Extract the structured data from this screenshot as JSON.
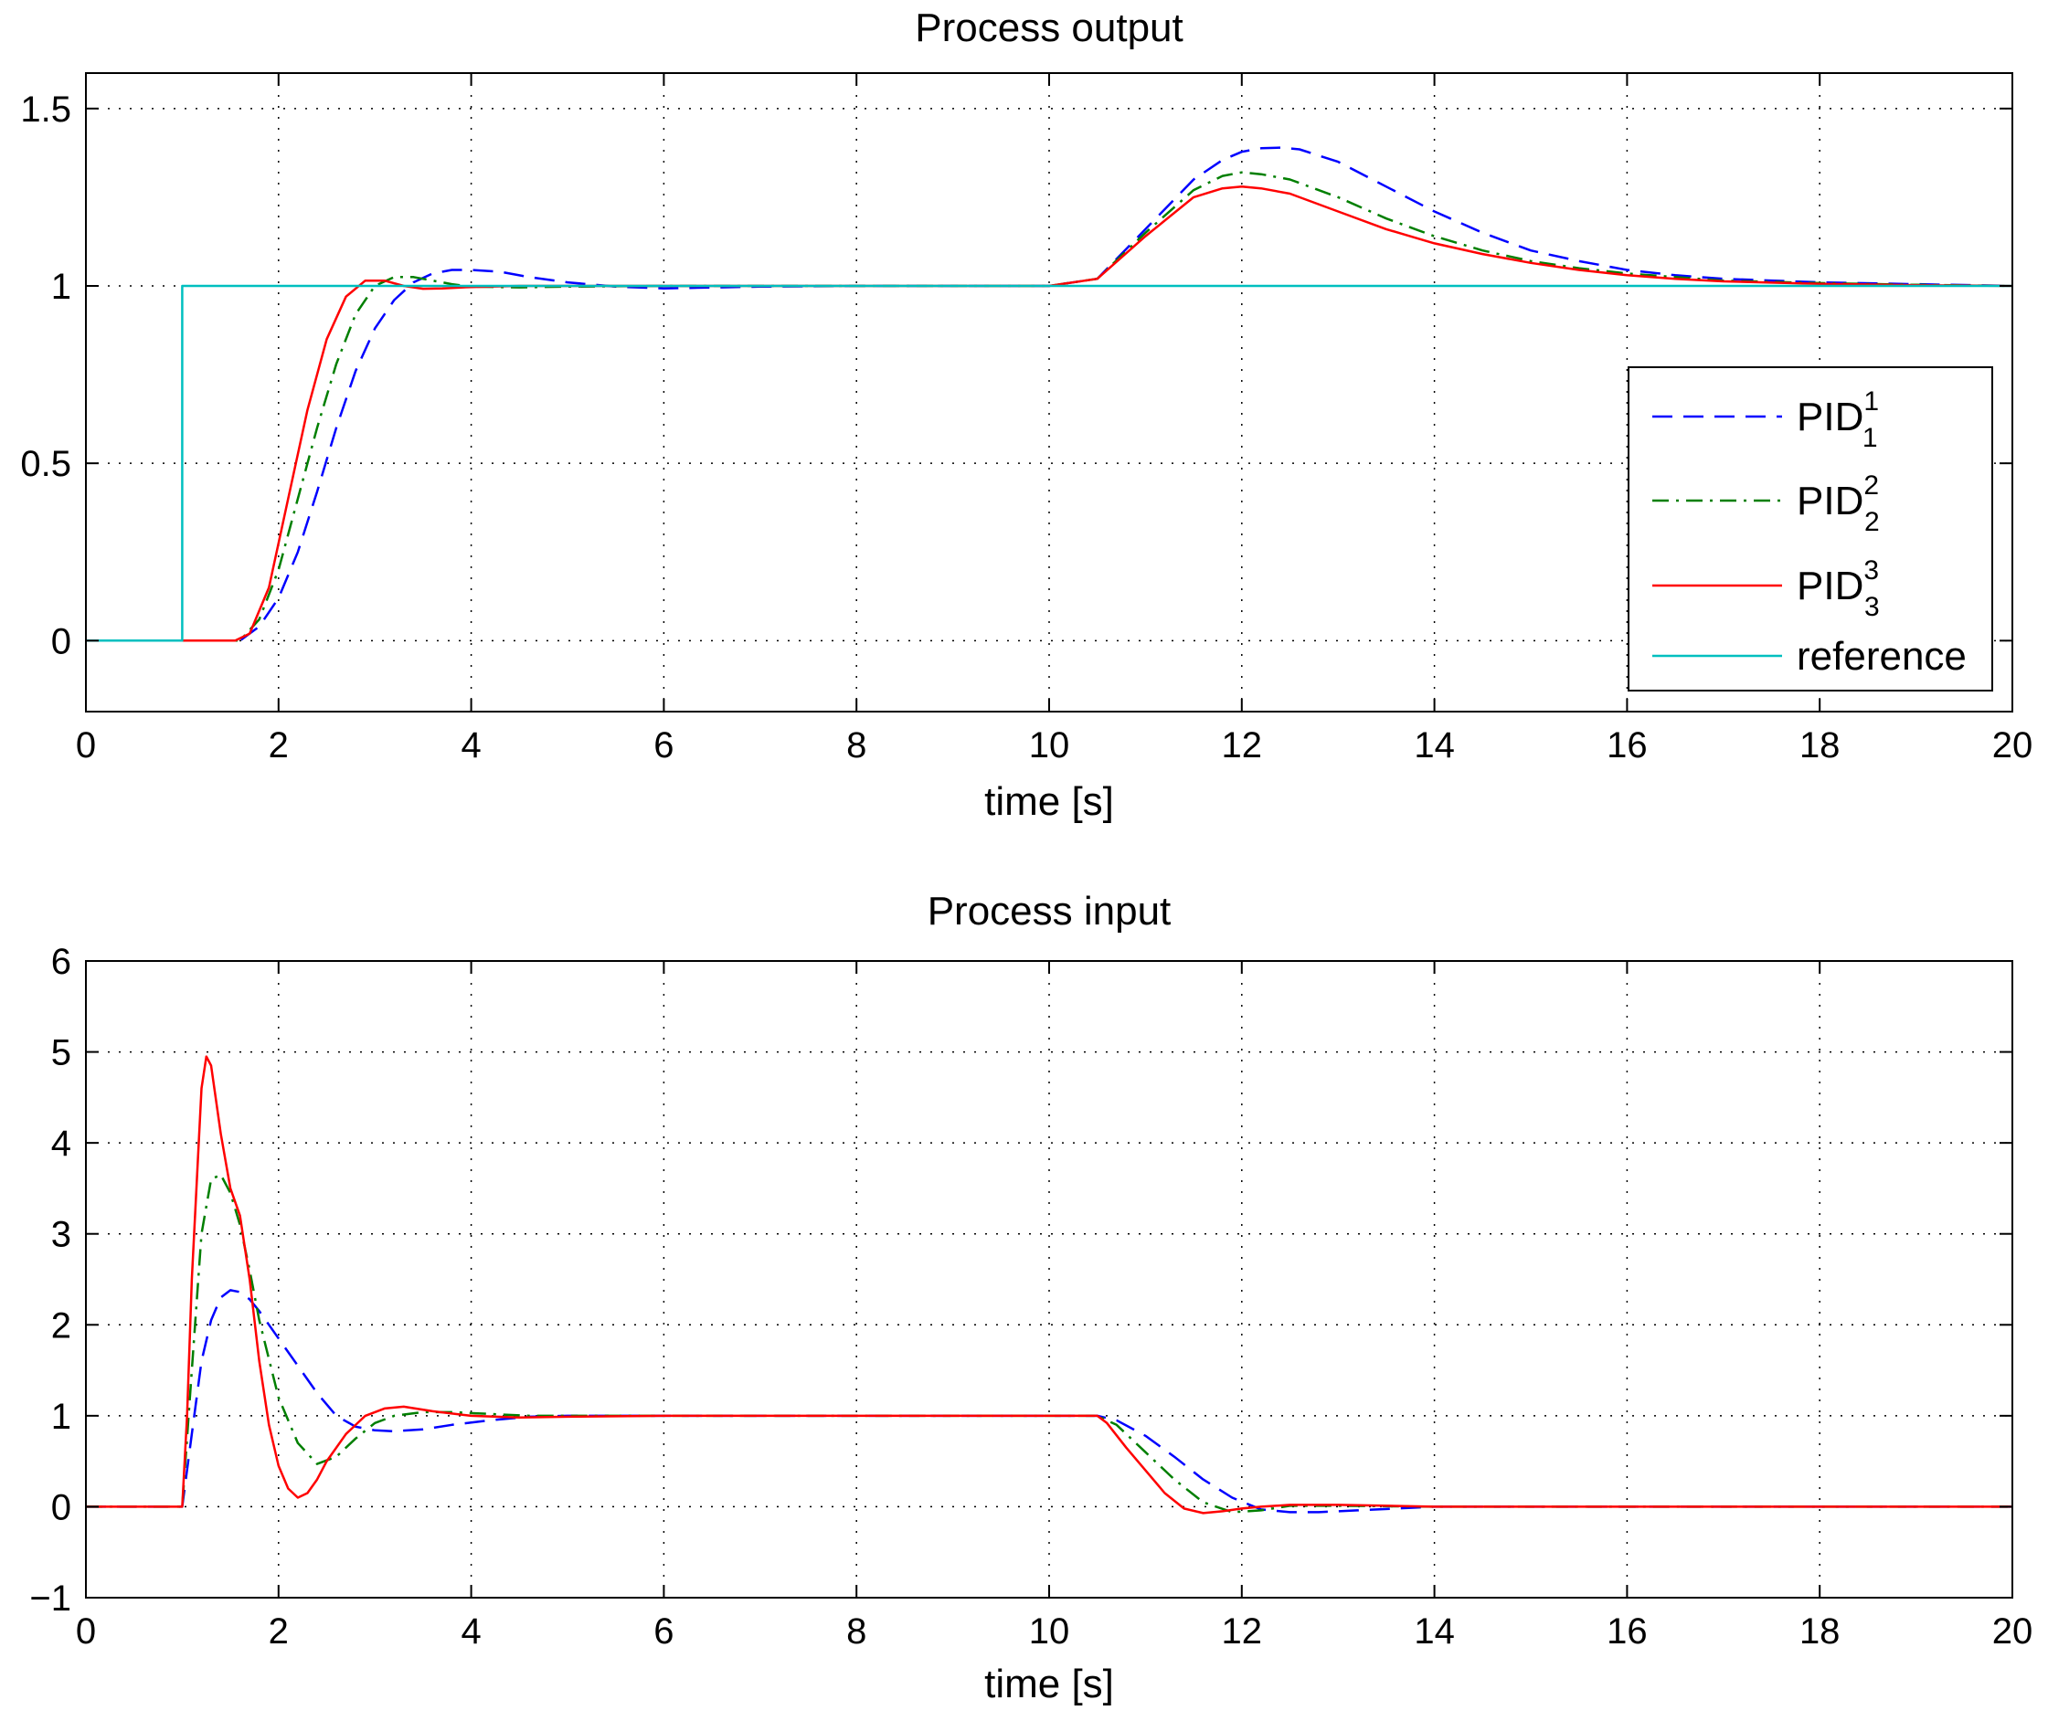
{
  "chart_data": [
    {
      "type": "line",
      "title": "Process output",
      "xlabel": "time [s]",
      "ylabel": "",
      "xlim": [
        0,
        20
      ],
      "ylim": [
        -0.2,
        1.6
      ],
      "xticks": [
        0,
        2,
        4,
        6,
        8,
        10,
        12,
        14,
        16,
        18,
        20
      ],
      "yticks": [
        0,
        0.5,
        1,
        1.5
      ],
      "grid": true,
      "legend_position": "right",
      "series": [
        {
          "name": "PID",
          "sub": "1",
          "sup": "1",
          "color": "#0000ff",
          "style": "dashed",
          "x": [
            0,
            1.6,
            1.8,
            2.0,
            2.2,
            2.4,
            2.6,
            2.8,
            3.0,
            3.2,
            3.4,
            3.6,
            3.8,
            4.0,
            4.3,
            4.6,
            5.0,
            5.5,
            6.0,
            7.0,
            8.0,
            10.0,
            10.5,
            11.0,
            11.5,
            11.8,
            12.0,
            12.2,
            12.4,
            12.6,
            13.0,
            13.5,
            14.0,
            14.5,
            15.0,
            15.5,
            16.0,
            16.5,
            17.0,
            18.0,
            19.0,
            20.0
          ],
          "values": [
            0,
            0,
            0.04,
            0.12,
            0.25,
            0.42,
            0.6,
            0.76,
            0.88,
            0.96,
            1.01,
            1.035,
            1.045,
            1.045,
            1.04,
            1.025,
            1.01,
            0.998,
            0.993,
            0.998,
            1.0,
            1.0,
            1.02,
            1.16,
            1.3,
            1.355,
            1.378,
            1.388,
            1.39,
            1.385,
            1.35,
            1.28,
            1.21,
            1.15,
            1.1,
            1.07,
            1.045,
            1.03,
            1.02,
            1.01,
            1.005,
            1.0
          ]
        },
        {
          "name": "PID",
          "sub": "2",
          "sup": "2",
          "color": "#007f00",
          "style": "dashdot",
          "x": [
            0,
            1.6,
            1.8,
            2.0,
            2.2,
            2.4,
            2.6,
            2.8,
            3.0,
            3.2,
            3.4,
            3.6,
            3.8,
            4.0,
            4.5,
            5.0,
            6.0,
            8.0,
            10.0,
            10.5,
            11.0,
            11.5,
            11.8,
            12.0,
            12.2,
            12.5,
            13.0,
            13.5,
            14.0,
            14.5,
            15.0,
            15.5,
            16.0,
            16.5,
            17.0,
            18.0,
            19.0,
            20.0
          ],
          "values": [
            0,
            0,
            0.06,
            0.2,
            0.4,
            0.6,
            0.78,
            0.92,
            1.0,
            1.025,
            1.025,
            1.015,
            1.005,
            0.998,
            0.996,
            0.998,
            1.0,
            1.0,
            1.0,
            1.02,
            1.15,
            1.27,
            1.31,
            1.32,
            1.315,
            1.3,
            1.25,
            1.19,
            1.14,
            1.1,
            1.07,
            1.05,
            1.035,
            1.025,
            1.015,
            1.008,
            1.003,
            1.0
          ]
        },
        {
          "name": "PID",
          "sub": "3",
          "sup": "3",
          "color": "#ff0000",
          "style": "solid",
          "x": [
            0,
            1.55,
            1.7,
            1.9,
            2.1,
            2.3,
            2.5,
            2.7,
            2.9,
            3.1,
            3.3,
            3.5,
            3.7,
            4.0,
            4.5,
            5.0,
            6.0,
            8.0,
            10.0,
            10.5,
            11.0,
            11.5,
            11.8,
            12.0,
            12.2,
            12.5,
            13.0,
            13.5,
            14.0,
            14.5,
            15.0,
            15.5,
            16.0,
            16.5,
            17.0,
            18.0,
            19.0,
            20.0
          ],
          "values": [
            0,
            0,
            0.02,
            0.15,
            0.4,
            0.65,
            0.85,
            0.97,
            1.015,
            1.015,
            1.0,
            0.992,
            0.993,
            0.997,
            1.0,
            1.0,
            1.0,
            1.0,
            1.0,
            1.02,
            1.14,
            1.25,
            1.275,
            1.28,
            1.275,
            1.26,
            1.21,
            1.16,
            1.12,
            1.09,
            1.065,
            1.045,
            1.03,
            1.02,
            1.013,
            1.006,
            1.002,
            1.0
          ]
        },
        {
          "name": "reference",
          "sub": "",
          "sup": "",
          "color": "#00bfbf",
          "style": "solid",
          "x": [
            0,
            1.0,
            1.0,
            20.0
          ],
          "values": [
            0,
            0,
            1,
            1
          ]
        }
      ]
    },
    {
      "type": "line",
      "title": "Process input",
      "xlabel": "time [s]",
      "ylabel": "",
      "xlim": [
        0,
        20
      ],
      "ylim": [
        -1,
        6
      ],
      "xticks": [
        0,
        2,
        4,
        6,
        8,
        10,
        12,
        14,
        16,
        18,
        20
      ],
      "yticks": [
        -1,
        0,
        1,
        2,
        3,
        4,
        5,
        6
      ],
      "grid": true,
      "series": [
        {
          "name": "PID",
          "sub": "1",
          "sup": "1",
          "color": "#0000ff",
          "style": "dashed",
          "x": [
            0,
            1.0,
            1.1,
            1.2,
            1.3,
            1.4,
            1.5,
            1.6,
            1.7,
            1.8,
            2.0,
            2.2,
            2.4,
            2.6,
            2.8,
            3.0,
            3.2,
            3.5,
            3.8,
            4.2,
            4.6,
            5.0,
            6.0,
            8.0,
            10.5,
            10.7,
            11.0,
            11.3,
            11.6,
            11.9,
            12.2,
            12.5,
            12.8,
            13.2,
            13.6,
            14.0,
            15.0,
            20.0
          ],
          "values": [
            0,
            0,
            0.8,
            1.6,
            2.05,
            2.3,
            2.38,
            2.36,
            2.28,
            2.15,
            1.85,
            1.55,
            1.25,
            1.0,
            0.88,
            0.84,
            0.83,
            0.85,
            0.9,
            0.95,
            0.99,
            1.0,
            1.0,
            1.0,
            1.0,
            0.95,
            0.78,
            0.55,
            0.3,
            0.1,
            -0.03,
            -0.06,
            -0.06,
            -0.04,
            -0.02,
            0,
            0,
            0
          ]
        },
        {
          "name": "PID",
          "sub": "2",
          "sup": "2",
          "color": "#007f00",
          "style": "dashdot",
          "x": [
            0,
            1.0,
            1.1,
            1.2,
            1.3,
            1.4,
            1.5,
            1.6,
            1.7,
            1.8,
            2.0,
            2.2,
            2.4,
            2.6,
            2.8,
            3.0,
            3.2,
            3.5,
            3.8,
            4.2,
            4.6,
            5.0,
            6.0,
            8.0,
            10.5,
            10.7,
            11.0,
            11.3,
            11.6,
            11.9,
            12.2,
            12.5,
            13.0,
            14.0,
            20.0
          ],
          "values": [
            0,
            0,
            1.5,
            3.0,
            3.6,
            3.65,
            3.45,
            3.1,
            2.6,
            2.05,
            1.2,
            0.7,
            0.47,
            0.55,
            0.75,
            0.92,
            1.0,
            1.04,
            1.04,
            1.02,
            1.0,
            1.0,
            1.0,
            1.0,
            1.0,
            0.9,
            0.6,
            0.3,
            0.05,
            -0.06,
            -0.04,
            0.01,
            0.01,
            0,
            0
          ]
        },
        {
          "name": "PID",
          "sub": "3",
          "sup": "3",
          "color": "#ff0000",
          "style": "solid",
          "x": [
            0,
            1.0,
            1.05,
            1.1,
            1.2,
            1.25,
            1.3,
            1.4,
            1.5,
            1.6,
            1.7,
            1.8,
            1.9,
            2.0,
            2.1,
            2.2,
            2.3,
            2.4,
            2.5,
            2.7,
            2.9,
            3.1,
            3.3,
            3.6,
            4.0,
            4.5,
            5.0,
            6.0,
            8.0,
            10.5,
            10.6,
            10.8,
            11.0,
            11.2,
            11.4,
            11.6,
            11.8,
            12.0,
            12.2,
            12.5,
            13.0,
            14.0,
            20.0
          ],
          "values": [
            0,
            0,
            1.0,
            2.5,
            4.6,
            4.95,
            4.85,
            4.1,
            3.5,
            3.2,
            2.5,
            1.6,
            0.9,
            0.45,
            0.2,
            0.1,
            0.15,
            0.3,
            0.5,
            0.8,
            1.0,
            1.08,
            1.1,
            1.05,
            1.0,
            0.98,
            0.99,
            1.0,
            1.0,
            1.0,
            0.92,
            0.65,
            0.4,
            0.15,
            -0.02,
            -0.07,
            -0.05,
            -0.02,
            0.0,
            0.02,
            0.02,
            0,
            0
          ]
        }
      ]
    }
  ]
}
